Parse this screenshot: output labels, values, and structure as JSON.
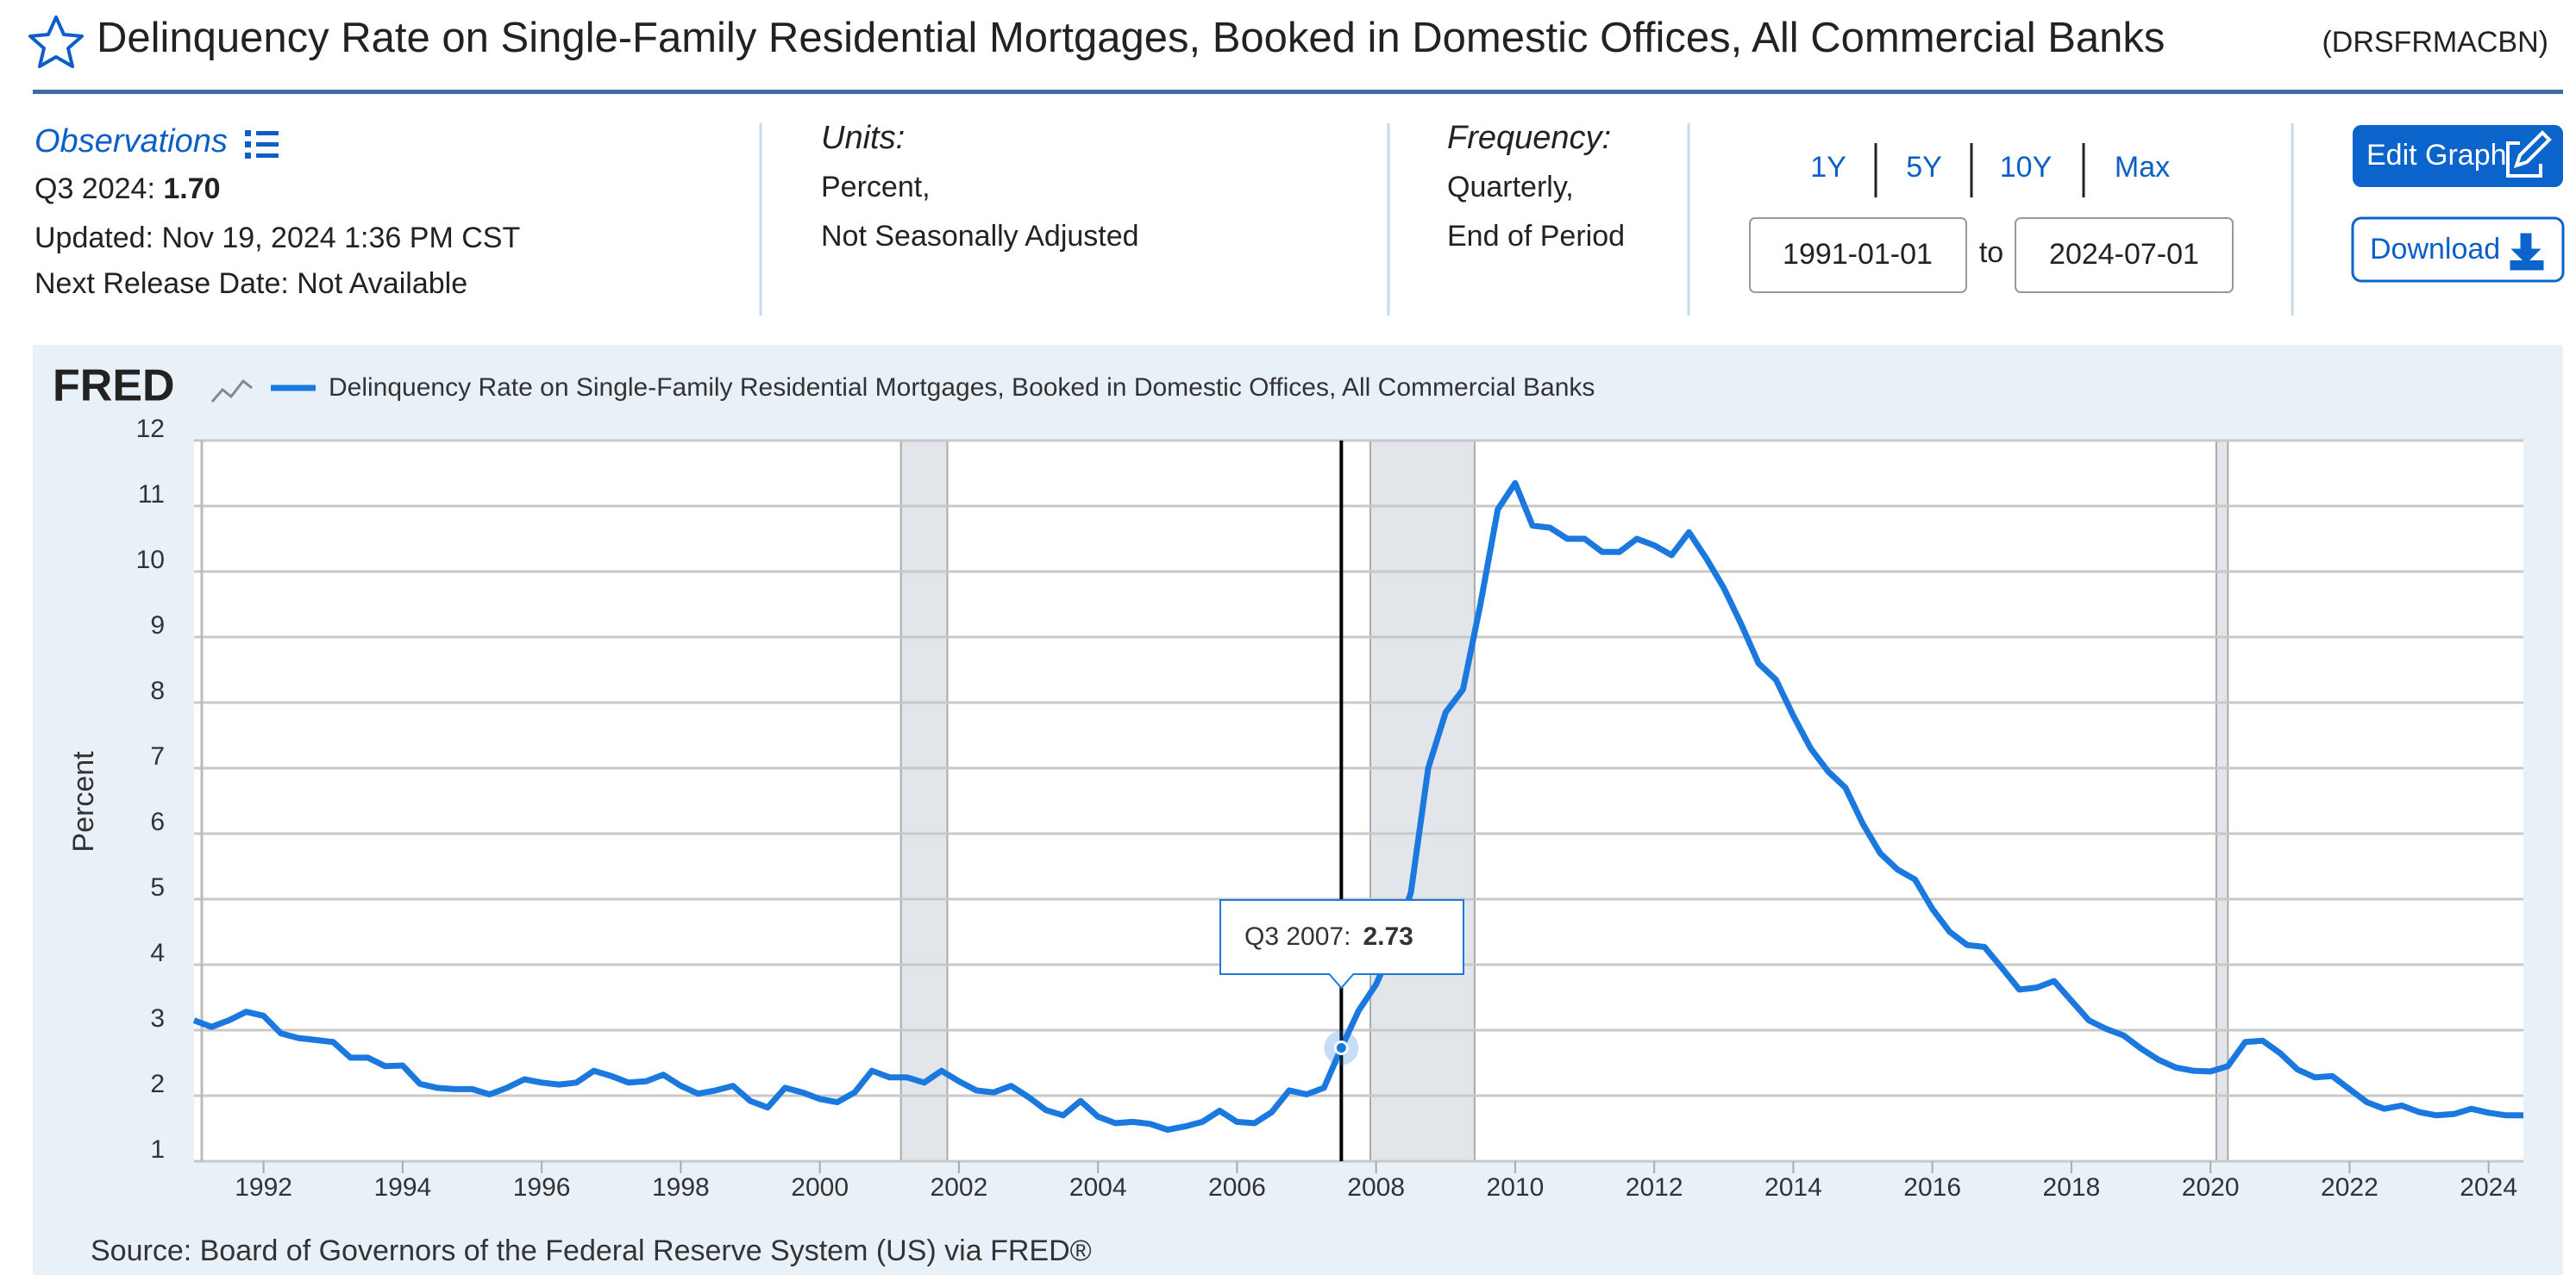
{
  "header": {
    "title": "Delinquency Rate on Single-Family Residential Mortgages, Booked in Domestic Offices, All Commercial Banks",
    "series_id": "(DRSFRMACBN)"
  },
  "info": {
    "observations_label": "Observations",
    "latest_label": "Q3 2024:",
    "latest_value": "1.70",
    "updated": "Updated: Nov 19, 2024 1:36 PM CST",
    "next_release": "Next Release Date: Not Available",
    "units_label": "Units:",
    "units": [
      "Percent,",
      "Not Seasonally Adjusted"
    ],
    "frequency_label": "Frequency:",
    "frequency": [
      "Quarterly,",
      "End of Period"
    ],
    "ranges": [
      "1Y",
      "5Y",
      "10Y",
      "Max"
    ],
    "start_date": "1991-01-01",
    "to": "to",
    "end_date": "2024-07-01",
    "edit_button": "Edit Graph",
    "download_button": "Download"
  },
  "chart_data": {
    "type": "line",
    "logo": "FRED",
    "ylabel": "Percent",
    "source": "Source: Board of Governors of the Federal Reserve System (US) via FRED®",
    "xlim": [
      "1991-01-01",
      "2024-07-01"
    ],
    "ylim": [
      1,
      12
    ],
    "yticks": [
      1,
      2,
      3,
      4,
      5,
      6,
      7,
      8,
      9,
      10,
      11,
      12
    ],
    "xticks": [
      {
        "value": "1992-01-01",
        "label": "1992"
      },
      {
        "value": "1994-01-01",
        "label": "1994"
      },
      {
        "value": "1996-01-01",
        "label": "1996"
      },
      {
        "value": "1998-01-01",
        "label": "1998"
      },
      {
        "value": "2000-01-01",
        "label": "2000"
      },
      {
        "value": "2002-01-01",
        "label": "2002"
      },
      {
        "value": "2004-01-01",
        "label": "2004"
      },
      {
        "value": "2006-01-01",
        "label": "2006"
      },
      {
        "value": "2008-01-01",
        "label": "2008"
      },
      {
        "value": "2010-01-01",
        "label": "2010"
      },
      {
        "value": "2012-01-01",
        "label": "2012"
      },
      {
        "value": "2014-01-01",
        "label": "2014"
      },
      {
        "value": "2016-01-01",
        "label": "2016"
      },
      {
        "value": "2018-01-01",
        "label": "2018"
      },
      {
        "value": "2020-01-01",
        "label": "2020"
      },
      {
        "value": "2022-01-01",
        "label": "2022"
      },
      {
        "value": "2024-01-01",
        "label": "2024"
      }
    ],
    "grid": true,
    "recessions": [
      [
        "2001-03-01",
        "2001-11-01"
      ],
      [
        "2007-12-01",
        "2009-06-01"
      ],
      [
        "2020-02-01",
        "2020-04-01"
      ]
    ],
    "tooltip": {
      "label": "Q3 2007:",
      "x": "2007-07-01",
      "value": 2.73
    },
    "x": [
      "1991-01-01",
      "1991-04-01",
      "1991-07-01",
      "1991-10-01",
      "1992-01-01",
      "1992-04-01",
      "1992-07-01",
      "1992-10-01",
      "1993-01-01",
      "1993-04-01",
      "1993-07-01",
      "1993-10-01",
      "1994-01-01",
      "1994-04-01",
      "1994-07-01",
      "1994-10-01",
      "1995-01-01",
      "1995-04-01",
      "1995-07-01",
      "1995-10-01",
      "1996-01-01",
      "1996-04-01",
      "1996-07-01",
      "1996-10-01",
      "1997-01-01",
      "1997-04-01",
      "1997-07-01",
      "1997-10-01",
      "1998-01-01",
      "1998-04-01",
      "1998-07-01",
      "1998-10-01",
      "1999-01-01",
      "1999-04-01",
      "1999-07-01",
      "1999-10-01",
      "2000-01-01",
      "2000-04-01",
      "2000-07-01",
      "2000-10-01",
      "2001-01-01",
      "2001-04-01",
      "2001-07-01",
      "2001-10-01",
      "2002-01-01",
      "2002-04-01",
      "2002-07-01",
      "2002-10-01",
      "2003-01-01",
      "2003-04-01",
      "2003-07-01",
      "2003-10-01",
      "2004-01-01",
      "2004-04-01",
      "2004-07-01",
      "2004-10-01",
      "2005-01-01",
      "2005-04-01",
      "2005-07-01",
      "2005-10-01",
      "2006-01-01",
      "2006-04-01",
      "2006-07-01",
      "2006-10-01",
      "2007-01-01",
      "2007-04-01",
      "2007-07-01",
      "2007-10-01",
      "2008-01-01",
      "2008-04-01",
      "2008-07-01",
      "2008-10-01",
      "2009-01-01",
      "2009-04-01",
      "2009-07-01",
      "2009-10-01",
      "2010-01-01",
      "2010-04-01",
      "2010-07-01",
      "2010-10-01",
      "2011-01-01",
      "2011-04-01",
      "2011-07-01",
      "2011-10-01",
      "2012-01-01",
      "2012-04-01",
      "2012-07-01",
      "2012-10-01",
      "2013-01-01",
      "2013-04-01",
      "2013-07-01",
      "2013-10-01",
      "2014-01-01",
      "2014-04-01",
      "2014-07-01",
      "2014-10-01",
      "2015-01-01",
      "2015-04-01",
      "2015-07-01",
      "2015-10-01",
      "2016-01-01",
      "2016-04-01",
      "2016-07-01",
      "2016-10-01",
      "2017-01-01",
      "2017-04-01",
      "2017-07-01",
      "2017-10-01",
      "2018-01-01",
      "2018-04-01",
      "2018-07-01",
      "2018-10-01",
      "2019-01-01",
      "2019-04-01",
      "2019-07-01",
      "2019-10-01",
      "2020-01-01",
      "2020-04-01",
      "2020-07-01",
      "2020-10-01",
      "2021-01-01",
      "2021-04-01",
      "2021-07-01",
      "2021-10-01",
      "2022-01-01",
      "2022-04-01",
      "2022-07-01",
      "2022-10-01",
      "2023-01-01",
      "2023-04-01",
      "2023-07-01",
      "2023-10-01",
      "2024-01-01",
      "2024-04-01",
      "2024-07-01"
    ],
    "series": [
      {
        "name": "Delinquency Rate on Single-Family Residential Mortgages, Booked in Domestic Offices, All Commercial Banks",
        "color": "#1b78de",
        "values": [
          3.15,
          3.05,
          3.15,
          3.28,
          3.22,
          2.95,
          2.88,
          2.85,
          2.82,
          2.58,
          2.58,
          2.45,
          2.46,
          2.18,
          2.12,
          2.1,
          2.1,
          2.02,
          2.12,
          2.25,
          2.2,
          2.17,
          2.2,
          2.38,
          2.3,
          2.2,
          2.22,
          2.32,
          2.15,
          2.03,
          2.08,
          2.15,
          1.92,
          1.82,
          2.12,
          2.05,
          1.95,
          1.9,
          2.05,
          2.38,
          2.28,
          2.28,
          2.2,
          2.38,
          2.22,
          2.08,
          2.05,
          2.15,
          1.98,
          1.78,
          1.7,
          1.92,
          1.68,
          1.58,
          1.6,
          1.57,
          1.48,
          1.53,
          1.6,
          1.77,
          1.6,
          1.58,
          1.75,
          2.08,
          2.02,
          2.12,
          2.73,
          3.3,
          3.7,
          4.3,
          5.1,
          7.0,
          7.85,
          8.2,
          9.5,
          10.95,
          11.35,
          10.7,
          10.67,
          10.5,
          10.5,
          10.3,
          10.3,
          10.5,
          10.4,
          10.25,
          10.6,
          10.2,
          9.75,
          9.2,
          8.6,
          8.35,
          7.8,
          7.3,
          6.95,
          6.7,
          6.15,
          5.7,
          5.45,
          5.3,
          4.85,
          4.5,
          4.3,
          4.27,
          3.95,
          3.62,
          3.65,
          3.75,
          3.45,
          3.15,
          3.02,
          2.92,
          2.72,
          2.55,
          2.43,
          2.38,
          2.37,
          2.45,
          2.82,
          2.84,
          2.65,
          2.4,
          2.28,
          2.3,
          2.1,
          1.9,
          1.8,
          1.85,
          1.75,
          1.7,
          1.72,
          1.8,
          1.74,
          1.7,
          1.7
        ]
      }
    ]
  }
}
